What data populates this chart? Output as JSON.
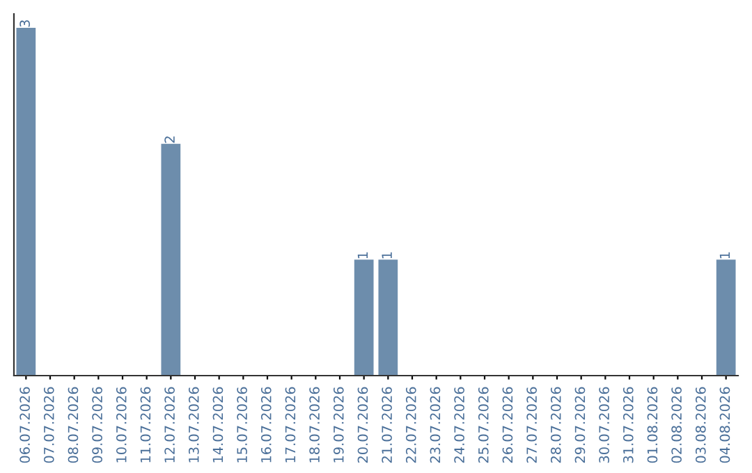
{
  "chart_data": {
    "type": "bar",
    "categories": [
      "06.07.2026",
      "07.07.2026",
      "08.07.2026",
      "09.07.2026",
      "10.07.2026",
      "11.07.2026",
      "12.07.2026",
      "13.07.2026",
      "14.07.2026",
      "15.07.2026",
      "16.07.2026",
      "17.07.2026",
      "18.07.2026",
      "19.07.2026",
      "20.07.2026",
      "21.07.2026",
      "22.07.2026",
      "23.07.2026",
      "24.07.2026",
      "25.07.2026",
      "26.07.2026",
      "27.07.2026",
      "28.07.2026",
      "29.07.2026",
      "30.07.2026",
      "31.07.2026",
      "01.08.2026",
      "02.08.2026",
      "03.08.2026",
      "04.08.2026"
    ],
    "values": [
      3,
      0,
      0,
      0,
      0,
      0,
      2,
      0,
      0,
      0,
      0,
      0,
      0,
      0,
      1,
      1,
      0,
      0,
      0,
      0,
      0,
      0,
      0,
      0,
      0,
      0,
      0,
      0,
      0,
      1
    ],
    "color": "#6d8dac",
    "value_labels": [
      "3",
      null,
      null,
      null,
      null,
      null,
      "2",
      null,
      null,
      null,
      null,
      null,
      null,
      null,
      "1",
      "1",
      null,
      null,
      null,
      null,
      null,
      null,
      null,
      null,
      null,
      null,
      null,
      null,
      null,
      "1"
    ],
    "tick_labels": "x",
    "grid": false,
    "legend": false
  }
}
